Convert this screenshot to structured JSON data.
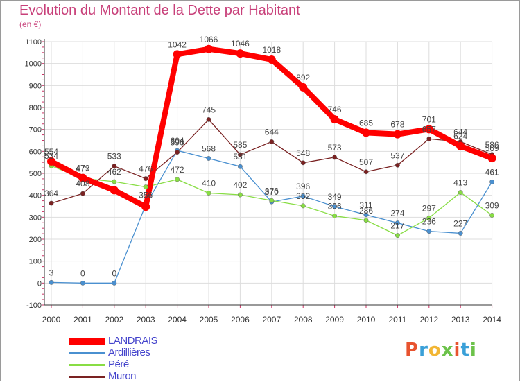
{
  "title": "Evolution du Montant de la Dette par Habitant",
  "unit": "(en €)",
  "logo": {
    "text": "Proxiti",
    "colors": [
      "#e8532f",
      "#3aa0d8",
      "#f2b634",
      "#6cc24a",
      "#e8532f",
      "#3aa0d8",
      "#6cc24a"
    ]
  },
  "chart_data": {
    "type": "line",
    "x": [
      "2000",
      "2001",
      "2002",
      "2003",
      "2004",
      "2005",
      "2006",
      "2007",
      "2008",
      "2009",
      "2010",
      "2011",
      "2012",
      "2013",
      "2014"
    ],
    "ylim": [
      -100,
      1100
    ],
    "yticks": [
      -100,
      0,
      100,
      200,
      300,
      400,
      500,
      600,
      700,
      800,
      900,
      1000,
      1100
    ],
    "grid": true,
    "legend_position": "bottom-left",
    "series": [
      {
        "name": "LANDRAIS",
        "color": "#ff0000",
        "values": [
          554,
          479,
          423,
          348,
          1042,
          1066,
          1046,
          1018,
          892,
          746,
          685,
          678,
          701,
          624,
          569
        ],
        "labels": [
          "554",
          "479",
          "",
          "",
          "1042",
          "1066",
          "1046",
          "1018",
          "892",
          "746",
          "685",
          "678",
          "701",
          "624",
          "569"
        ]
      },
      {
        "name": "Ardillières",
        "color": "#4a90d0",
        "values": [
          3,
          0,
          0,
          356,
          604,
          568,
          531,
          370,
          396,
          349,
          311,
          274,
          236,
          227,
          461
        ],
        "labels": [
          "3",
          "0",
          "0",
          "356",
          "604",
          "568",
          "531",
          "370",
          "396",
          "349",
          "311",
          "274",
          "236",
          "227",
          "461"
        ]
      },
      {
        "name": "Péré",
        "color": "#88dd44",
        "values": [
          534,
          477,
          462,
          438,
          472,
          410,
          402,
          376,
          352,
          306,
          286,
          217,
          297,
          413,
          309
        ],
        "labels": [
          "534",
          "477",
          "462",
          "",
          "472",
          "410",
          "402",
          "376",
          "352",
          "306",
          "286",
          "217",
          "297",
          "413",
          "309"
        ]
      },
      {
        "name": "Muron",
        "color": "#7a2222",
        "values": [
          364,
          408,
          533,
          476,
          596,
          745,
          585,
          644,
          548,
          573,
          507,
          537,
          657,
          644,
          586
        ],
        "labels": [
          "364",
          "408",
          "533",
          "476",
          "596",
          "745",
          "585",
          "644",
          "548",
          "573",
          "507",
          "537",
          "657",
          "644",
          "586"
        ]
      }
    ]
  }
}
